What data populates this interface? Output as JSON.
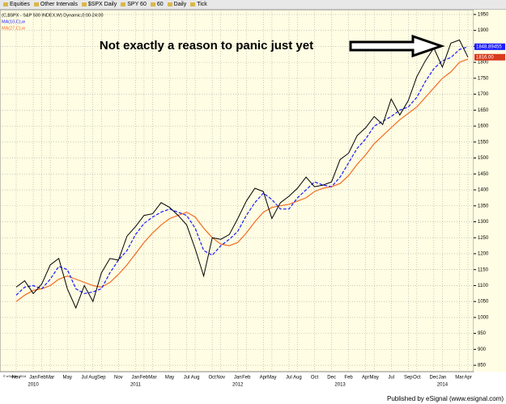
{
  "toolbar": [
    "Equities",
    "Other Intervals",
    "$SPX Daily",
    "SPY 60",
    "60",
    "Daily",
    "Tick"
  ],
  "chart_data": {
    "type": "line",
    "title": "Not exactly a reason to panic just yet",
    "categories": [
      "Nov",
      null,
      "Jan",
      "Feb",
      "Mar",
      null,
      "May",
      null,
      "Jul",
      "Aug",
      "Sep",
      null,
      "Nov",
      null,
      "Jan",
      "Feb",
      "Mar",
      null,
      "May",
      null,
      "Jul",
      "Aug",
      null,
      "Oct",
      "Nov",
      null,
      "Jan",
      "Feb",
      null,
      "Apr",
      "May",
      null,
      "Jul",
      "Aug",
      null,
      "Oct",
      null,
      "Dec",
      null,
      "Feb",
      null,
      "Apr",
      "May",
      null,
      "Jul",
      null,
      "Sep",
      "Oct",
      null,
      "Dec",
      "Jan",
      null,
      "Mar",
      "Apr"
    ],
    "years": [
      null,
      null,
      "2010",
      null,
      null,
      null,
      null,
      null,
      null,
      null,
      null,
      null,
      null,
      null,
      "2011",
      null,
      null,
      null,
      null,
      null,
      null,
      null,
      null,
      null,
      null,
      null,
      "2012",
      null,
      null,
      null,
      null,
      null,
      null,
      null,
      null,
      null,
      null,
      null,
      "2013",
      null,
      null,
      null,
      null,
      null,
      null,
      null,
      null,
      null,
      null,
      null,
      "2014",
      null,
      null,
      null
    ],
    "series": [
      {
        "name": "(C,$SPX - S&P 500 INDEX,W) Dynamic,0:00-24:00",
        "color": "#000000",
        "dash": false,
        "values": [
          1095,
          1115,
          1075,
          1105,
          1165,
          1185,
          1090,
          1030,
          1100,
          1050,
          1140,
          1185,
          1180,
          1255,
          1285,
          1320,
          1325,
          1360,
          1345,
          1320,
          1290,
          1215,
          1130,
          1250,
          1245,
          1260,
          1310,
          1365,
          1405,
          1395,
          1310,
          1360,
          1380,
          1405,
          1440,
          1410,
          1415,
          1425,
          1495,
          1515,
          1570,
          1595,
          1630,
          1605,
          1685,
          1635,
          1680,
          1755,
          1805,
          1845,
          1785,
          1860,
          1870,
          1816
        ],
        "value_labels": [
          null,
          null,
          null,
          null,
          null,
          null,
          null,
          null,
          null,
          null,
          null,
          null,
          null,
          null,
          null,
          null,
          null,
          null,
          null,
          null,
          null,
          null,
          null,
          null,
          null,
          null,
          null,
          null,
          null,
          null,
          null,
          null,
          null,
          null,
          null,
          null,
          null,
          null,
          null,
          null,
          null,
          null,
          null,
          null,
          null,
          null,
          null,
          null,
          null,
          null,
          null,
          null,
          null,
          "1816.00"
        ]
      },
      {
        "name": "MA(10,C),w",
        "color": "#1a1aff",
        "dash": true,
        "values": [
          1070,
          1095,
          1100,
          1090,
          1120,
          1160,
          1150,
          1090,
          1075,
          1080,
          1090,
          1140,
          1180,
          1210,
          1260,
          1295,
          1315,
          1330,
          1340,
          1330,
          1320,
          1280,
          1210,
          1195,
          1225,
          1245,
          1270,
          1320,
          1360,
          1390,
          1370,
          1340,
          1340,
          1375,
          1400,
          1425,
          1415,
          1410,
          1440,
          1485,
          1530,
          1560,
          1600,
          1615,
          1630,
          1650,
          1660,
          1690,
          1740,
          1780,
          1805,
          1815,
          1840,
          1848.89455
        ],
        "value_labels": [
          null,
          null,
          null,
          null,
          null,
          null,
          null,
          null,
          null,
          null,
          null,
          null,
          null,
          null,
          null,
          null,
          null,
          null,
          null,
          null,
          null,
          null,
          null,
          null,
          null,
          null,
          null,
          null,
          null,
          null,
          null,
          null,
          null,
          null,
          null,
          null,
          null,
          null,
          null,
          null,
          null,
          null,
          null,
          null,
          null,
          null,
          null,
          null,
          null,
          null,
          null,
          null,
          null,
          "1848.89455"
        ]
      },
      {
        "name": "MA(27,C),w",
        "color": "#f26b22",
        "dash": false,
        "values": [
          1050,
          1070,
          1085,
          1090,
          1100,
          1120,
          1130,
          1120,
          1110,
          1100,
          1095,
          1110,
          1135,
          1165,
          1200,
          1235,
          1265,
          1290,
          1310,
          1320,
          1330,
          1315,
          1280,
          1250,
          1230,
          1225,
          1235,
          1265,
          1300,
          1330,
          1345,
          1350,
          1355,
          1365,
          1375,
          1395,
          1405,
          1410,
          1420,
          1445,
          1480,
          1510,
          1545,
          1570,
          1595,
          1620,
          1640,
          1660,
          1690,
          1720,
          1750,
          1770,
          1800,
          1810
        ]
      }
    ],
    "ylim": [
      830,
      1965
    ],
    "yticks": [
      850,
      900,
      950,
      1000,
      1050,
      1100,
      1150,
      1200,
      1250,
      1300,
      1350,
      1400,
      1450,
      1500,
      1550,
      1600,
      1650,
      1700,
      1750,
      1800,
      1850,
      1900,
      1950
    ],
    "grid": true
  },
  "footer": {
    "copyright": "© eSignal, 2014",
    "publisher": "Published by eSignal (www.esignal.com)"
  }
}
